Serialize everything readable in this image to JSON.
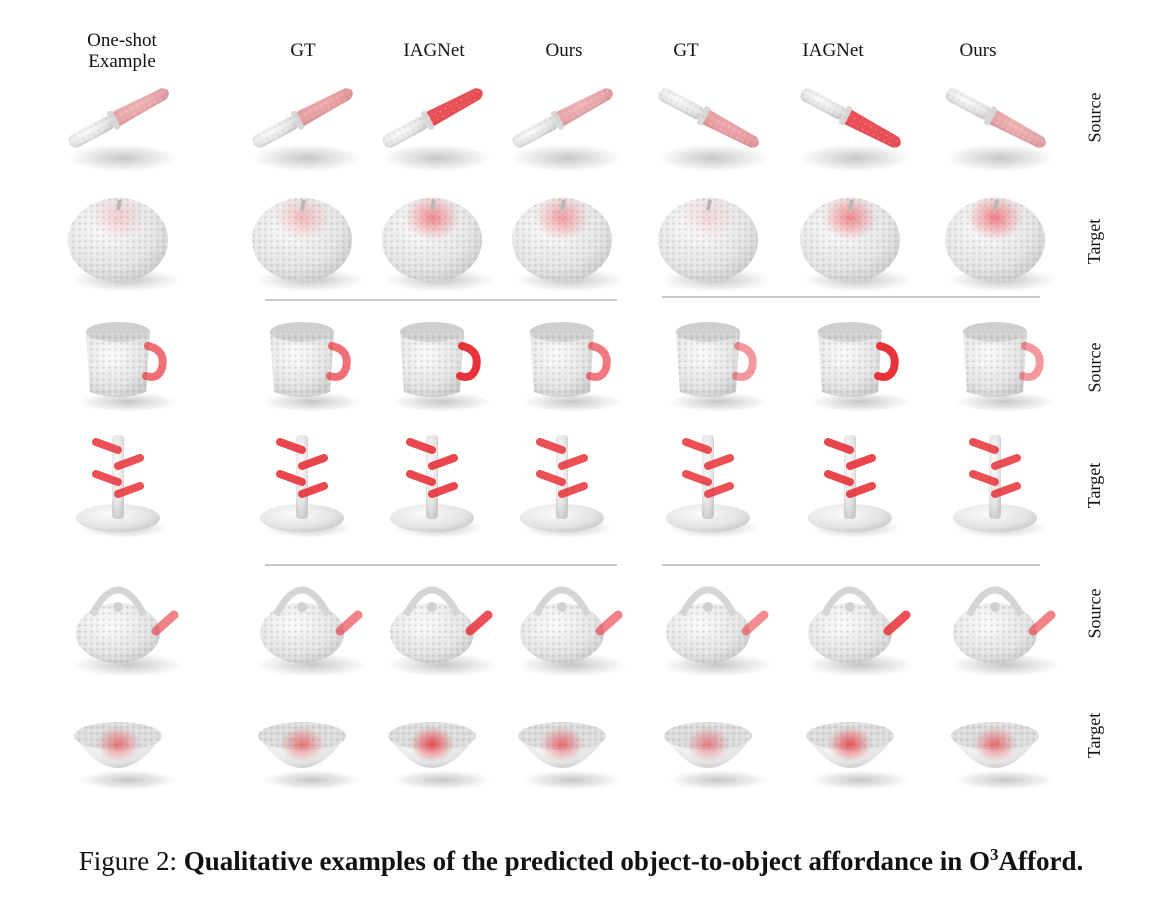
{
  "header": {
    "one_shot_line1": "One-shot",
    "one_shot_line2": "Example",
    "group1": [
      "GT",
      "IAGNet",
      "Ours"
    ],
    "group2": [
      "GT",
      "IAGNet",
      "Ours"
    ]
  },
  "row_labels": [
    "Source",
    "Target",
    "Source",
    "Target",
    "Source",
    "Target"
  ],
  "rows": [
    {
      "object": "knife",
      "affordance": [
        0.35,
        0.4,
        0.85,
        0.35,
        0.4,
        0.85,
        0.35
      ]
    },
    {
      "object": "apple",
      "affordance": [
        0.2,
        0.3,
        0.55,
        0.45,
        0.15,
        0.55,
        0.6
      ]
    },
    {
      "object": "mug",
      "affordance": [
        0.4,
        0.4,
        0.7,
        0.35,
        0.2,
        0.75,
        0.2
      ]
    },
    {
      "object": "mug-tree",
      "affordance": [
        0.5,
        0.55,
        0.55,
        0.5,
        0.5,
        0.55,
        0.5
      ]
    },
    {
      "object": "kettle",
      "affordance": [
        0.2,
        0.2,
        0.45,
        0.2,
        0.15,
        0.45,
        0.2
      ]
    },
    {
      "object": "bowl",
      "affordance": [
        0.3,
        0.3,
        0.55,
        0.35,
        0.25,
        0.5,
        0.35
      ]
    }
  ],
  "colors": {
    "affordance": "#e8323a",
    "point_cloud": "#e6e6e6",
    "separator": "#c8c8c8"
  },
  "caption": {
    "prefix": "Figure 2: ",
    "bold_text": "Qualitative examples of the predicted object-to-object affordance in O",
    "superscript": "3",
    "suffix": "Afford."
  }
}
